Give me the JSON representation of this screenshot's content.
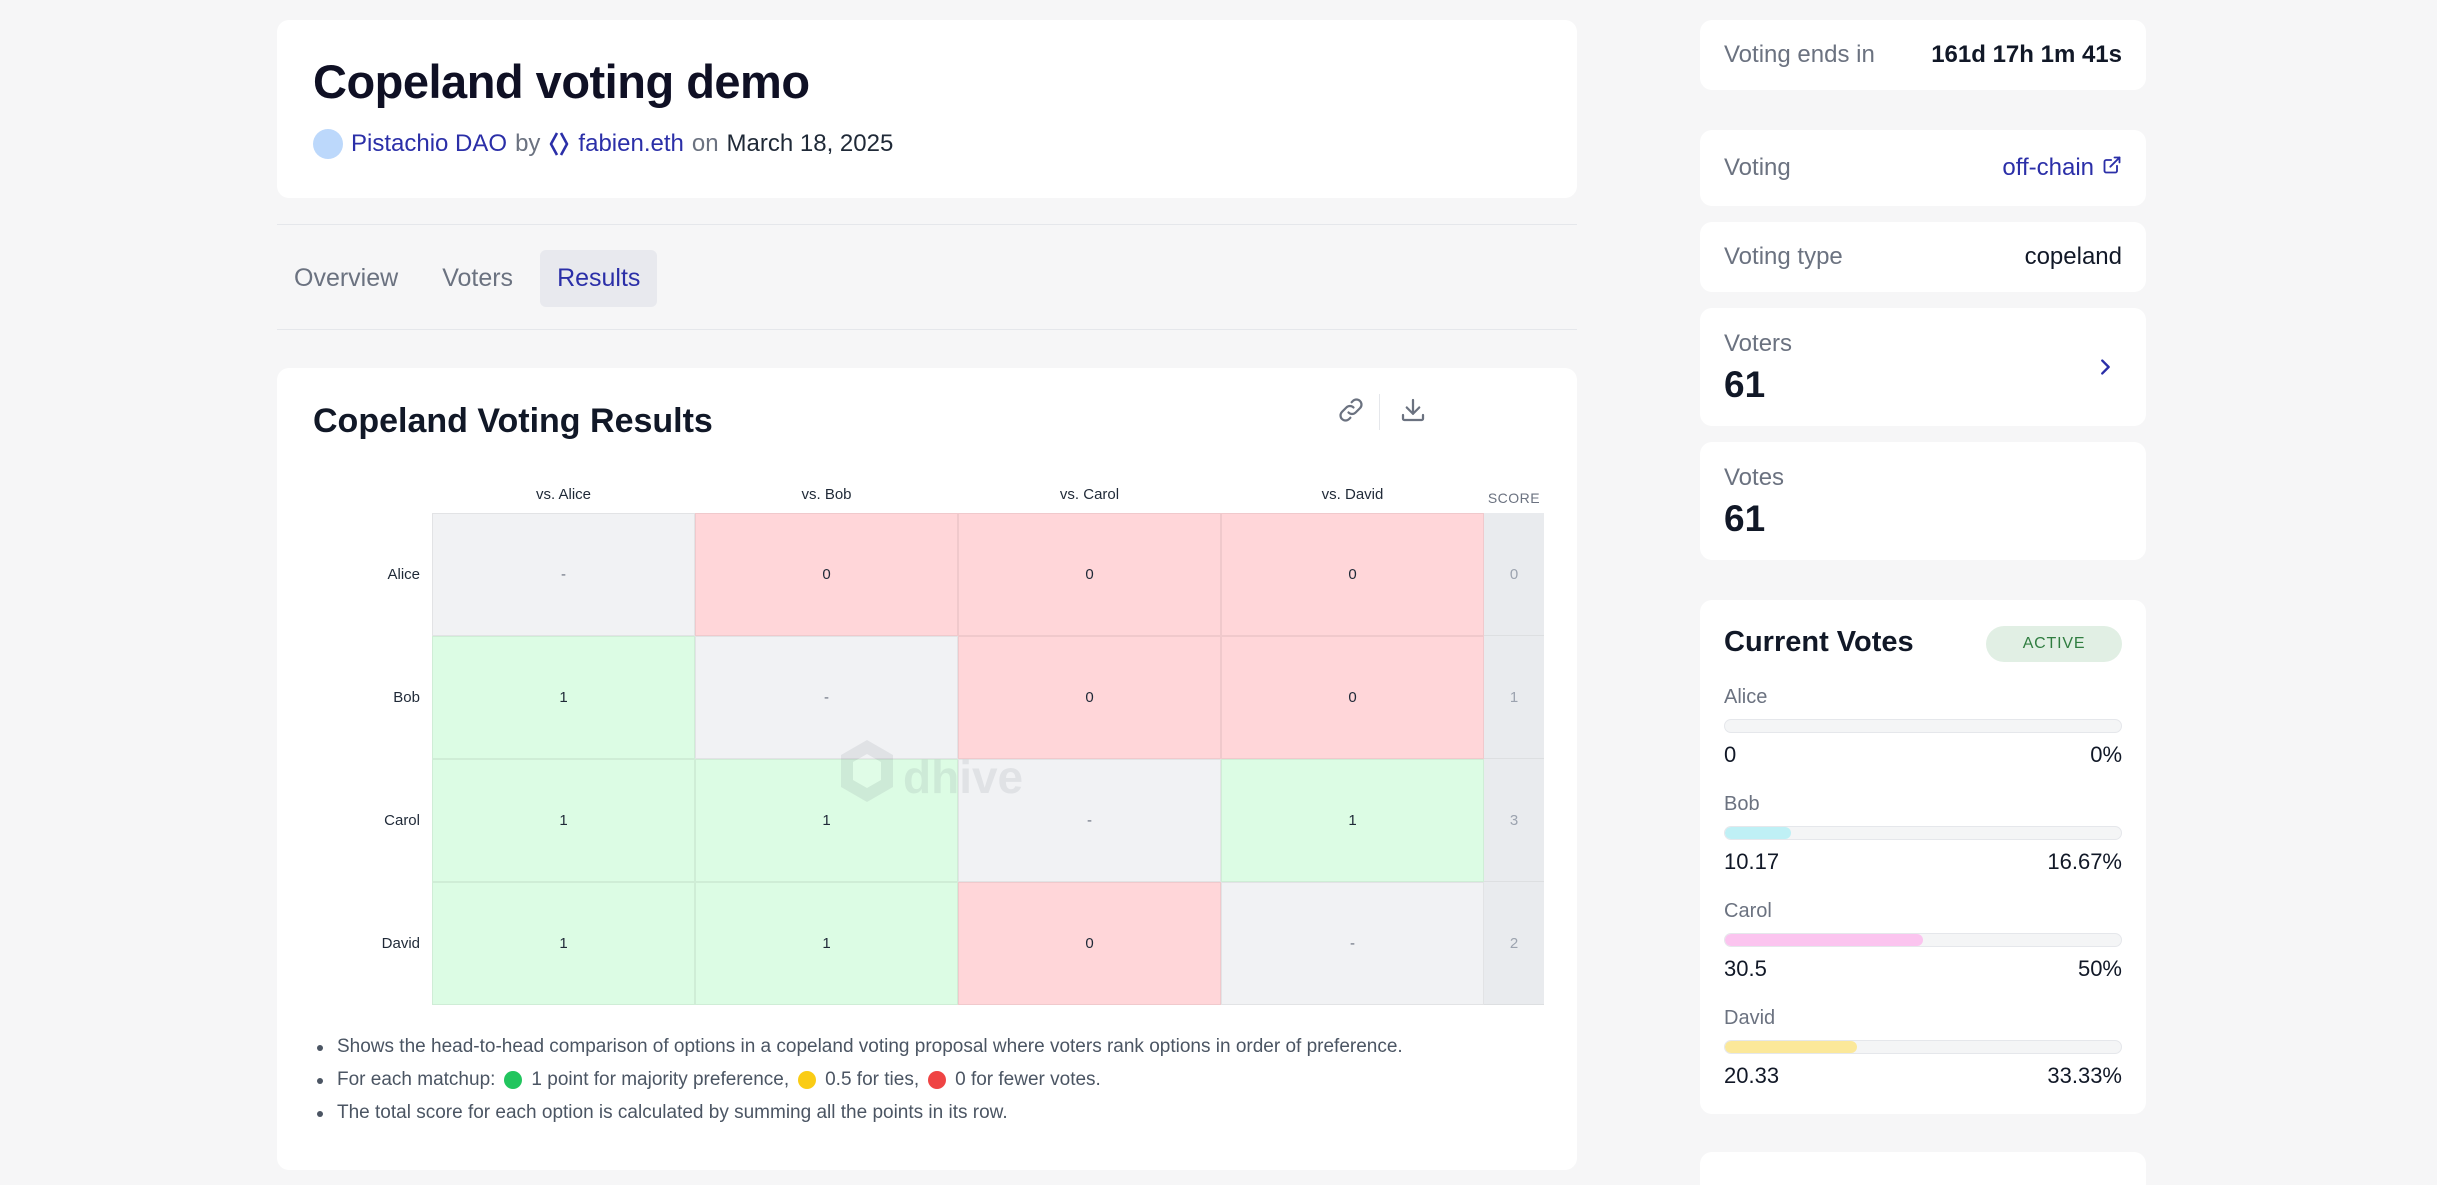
{
  "proposal": {
    "title": "Copeland voting demo",
    "dao": "Pistachio DAO",
    "by": "by",
    "author": "fabien.eth",
    "on": "on",
    "date": "March 18, 2025"
  },
  "tabs": [
    {
      "label": "Overview",
      "active": false
    },
    {
      "label": "Voters",
      "active": false
    },
    {
      "label": "Results",
      "active": true
    }
  ],
  "results": {
    "title": "Copeland Voting Results",
    "score_header": "SCORE",
    "watermark": "dhive",
    "columns": [
      "vs. Alice",
      "vs. Bob",
      "vs. Carol",
      "vs. David"
    ],
    "rows": [
      {
        "name": "Alice",
        "cells": [
          "-",
          "0",
          "0",
          "0"
        ],
        "types": [
          "self",
          "loss",
          "loss",
          "loss"
        ],
        "score": "0"
      },
      {
        "name": "Bob",
        "cells": [
          "1",
          "-",
          "0",
          "0"
        ],
        "types": [
          "win",
          "self",
          "loss",
          "loss"
        ],
        "score": "1"
      },
      {
        "name": "Carol",
        "cells": [
          "1",
          "1",
          "-",
          "1"
        ],
        "types": [
          "win",
          "win",
          "self",
          "win"
        ],
        "score": "3"
      },
      {
        "name": "David",
        "cells": [
          "1",
          "1",
          "0",
          "-"
        ],
        "types": [
          "win",
          "win",
          "loss",
          "self"
        ],
        "score": "2"
      }
    ],
    "notes": {
      "n1": "Shows the head-to-head comparison of options in a copeland voting proposal where voters rank options in order of preference.",
      "n2_prefix": "For each matchup:",
      "n2_win": "1 point for majority preference,",
      "n2_tie": "0.5 for ties,",
      "n2_loss": "0 for fewer votes.",
      "n3": "The total score for each option is calculated by summing all the points in its row."
    },
    "colors": {
      "win": "#22c55e",
      "tie": "#facc15",
      "loss": "#ef4444"
    }
  },
  "sidebar": {
    "ends_label": "Voting ends in",
    "ends_value": "161d 17h 1m 41s",
    "voting_label": "Voting",
    "voting_value": "off-chain",
    "type_label": "Voting type",
    "type_value": "copeland",
    "voters_label": "Voters",
    "voters_value": "61",
    "votes_label": "Votes",
    "votes_value": "61"
  },
  "current_votes": {
    "title": "Current Votes",
    "badge": "ACTIVE",
    "options": [
      {
        "name": "Alice",
        "votes": "0",
        "percent": "0%",
        "fraction": 0.0,
        "color": "#bff0f5"
      },
      {
        "name": "Bob",
        "votes": "10.17",
        "percent": "16.67%",
        "fraction": 0.1667,
        "color": "#bff0f5"
      },
      {
        "name": "Carol",
        "votes": "30.5",
        "percent": "50%",
        "fraction": 0.5,
        "color": "#fbc4ef"
      },
      {
        "name": "David",
        "votes": "20.33",
        "percent": "33.33%",
        "fraction": 0.3333,
        "color": "#fbe89a"
      }
    ]
  }
}
